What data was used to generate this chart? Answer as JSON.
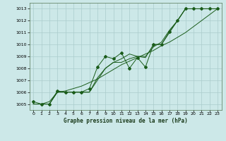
{
  "title": "Graphe pression niveau de la mer (hPa)",
  "bg_color": "#cce8e8",
  "grid_color": "#aacccc",
  "line_color": "#1a5c1a",
  "xlim": [
    -0.5,
    23.5
  ],
  "ylim": [
    1004.5,
    1013.5
  ],
  "xticks": [
    0,
    1,
    2,
    3,
    4,
    5,
    6,
    7,
    8,
    9,
    10,
    11,
    12,
    13,
    14,
    15,
    16,
    17,
    18,
    19,
    20,
    21,
    22,
    23
  ],
  "yticks": [
    1005,
    1006,
    1007,
    1008,
    1009,
    1010,
    1011,
    1012,
    1013
  ],
  "y_main": [
    1005.2,
    1005.0,
    1005.0,
    1006.1,
    1006.0,
    1006.0,
    1006.0,
    1006.3,
    1008.1,
    1009.0,
    1008.8,
    1009.3,
    1008.0,
    1008.9,
    1008.1,
    1010.0,
    1010.0,
    1011.1,
    1012.0,
    1013.0,
    1013.0,
    1013.0,
    1013.0,
    1013.0
  ],
  "y_smooth1": [
    1005.0,
    1005.0,
    1005.0,
    1006.0,
    1006.0,
    1006.0,
    1006.0,
    1006.0,
    1007.2,
    1008.0,
    1008.5,
    1008.8,
    1009.2,
    1009.0,
    1009.0,
    1009.8,
    1010.2,
    1011.2,
    1012.0,
    1013.0,
    1013.0,
    1013.0,
    1013.0,
    1013.0
  ],
  "y_smooth2": [
    1005.0,
    1005.0,
    1005.0,
    1006.0,
    1006.0,
    1006.0,
    1006.0,
    1006.0,
    1007.0,
    1008.0,
    1008.5,
    1008.5,
    1008.8,
    1009.0,
    1008.9,
    1010.0,
    1010.0,
    1011.0,
    1012.0,
    1013.0,
    1013.0,
    1013.0,
    1013.0,
    1013.0
  ],
  "y_straight": [
    1005.0,
    1005.0,
    1005.2,
    1006.0,
    1006.1,
    1006.3,
    1006.5,
    1006.8,
    1007.1,
    1007.5,
    1007.9,
    1008.3,
    1008.6,
    1008.9,
    1009.2,
    1009.5,
    1009.9,
    1010.2,
    1010.6,
    1011.0,
    1011.5,
    1012.0,
    1012.5,
    1013.0
  ]
}
